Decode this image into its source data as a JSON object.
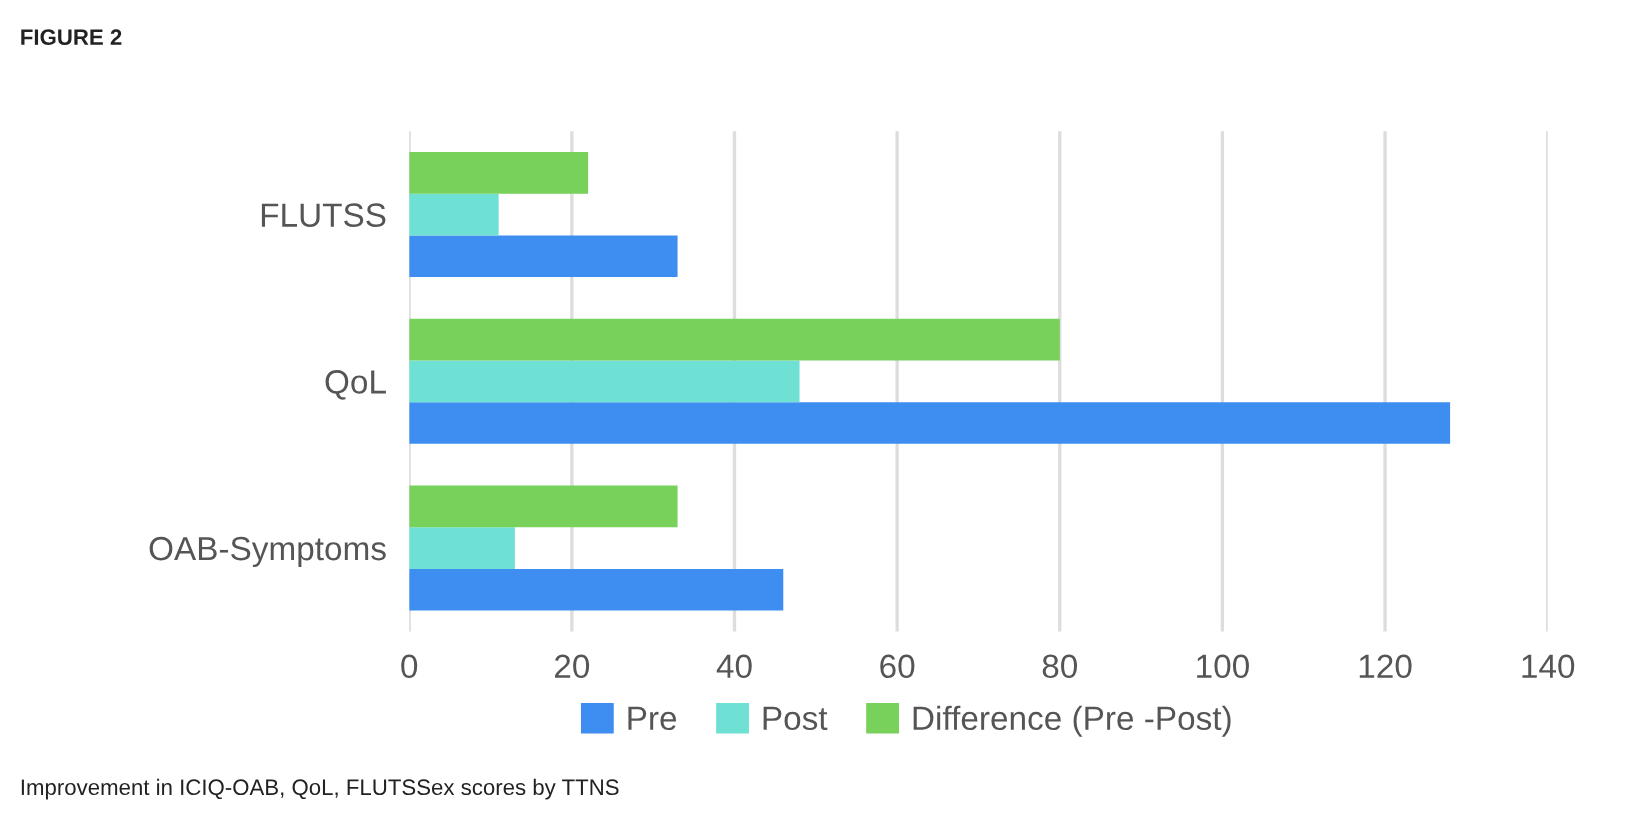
{
  "chart_data": {
    "type": "bar",
    "orientation": "horizontal",
    "title": "FIGURE 2",
    "categories": [
      "FLUTSS",
      "QoL",
      "OAB-Symptoms"
    ],
    "series": [
      {
        "name": "Pre",
        "color": "#3d8ef0",
        "values": [
          33,
          128,
          46
        ]
      },
      {
        "name": "Post",
        "color": "#6ee0d4",
        "values": [
          11,
          48,
          13
        ]
      },
      {
        "name": "Difference (Pre -Post)",
        "color": "#77d15a",
        "values": [
          22,
          80,
          33
        ]
      }
    ],
    "xlim": [
      0,
      140
    ],
    "xticks": [
      0,
      20,
      40,
      60,
      80,
      100,
      120,
      140
    ],
    "grid": "x",
    "legend": "bottom",
    "annotations": [
      "Improvement in ICIQ-OAB, QoL, FLUTSSex scores by TTNS"
    ]
  }
}
